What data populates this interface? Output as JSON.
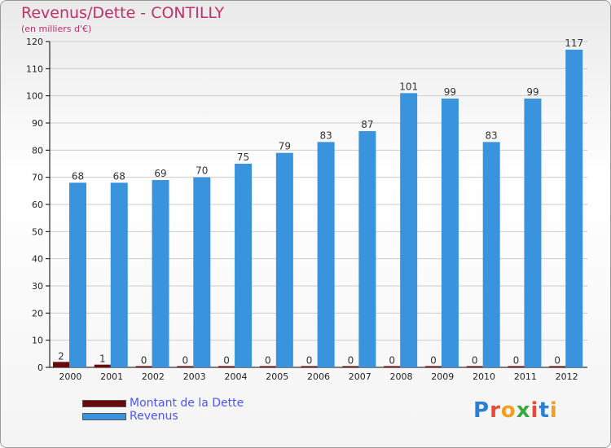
{
  "header": {
    "title": "Revenus/Dette - CONTILLY",
    "subtitle": "(en milliers d'€)"
  },
  "brand": {
    "logo_text": "Proxiti",
    "letter_colors": [
      "#2a7fd4",
      "#e84a3a",
      "#f0a020",
      "#3aa83a",
      "#e84a3a",
      "#2a7fd4",
      "#f0a020"
    ]
  },
  "colors": {
    "dette": "#6b0a0a",
    "revenus": "#3a93dd",
    "grid": "#cccccc",
    "axis": "#000000"
  },
  "legend": {
    "items": [
      {
        "label": "Montant de la Dette",
        "color": "#6b0a0a"
      },
      {
        "label": "Revenus",
        "color": "#3a93dd"
      }
    ]
  },
  "chart_data": {
    "type": "bar",
    "title": "Revenus/Dette - CONTILLY",
    "subtitle": "(en milliers d'€)",
    "categories": [
      "2000",
      "2001",
      "2002",
      "2003",
      "2004",
      "2005",
      "2006",
      "2007",
      "2008",
      "2009",
      "2010",
      "2011",
      "2012"
    ],
    "series": [
      {
        "name": "Montant de la Dette",
        "values": [
          2,
          1,
          0,
          0,
          0,
          0,
          0,
          0,
          0,
          0,
          0,
          0,
          0
        ]
      },
      {
        "name": "Revenus",
        "values": [
          68,
          68,
          69,
          70,
          75,
          79,
          83,
          87,
          101,
          99,
          83,
          99,
          117
        ]
      }
    ],
    "ylim": [
      0,
      120
    ],
    "yticks": [
      0,
      10,
      20,
      30,
      40,
      50,
      60,
      70,
      80,
      90,
      100,
      110,
      120
    ],
    "grid": true,
    "legend_position": "bottom-left"
  }
}
